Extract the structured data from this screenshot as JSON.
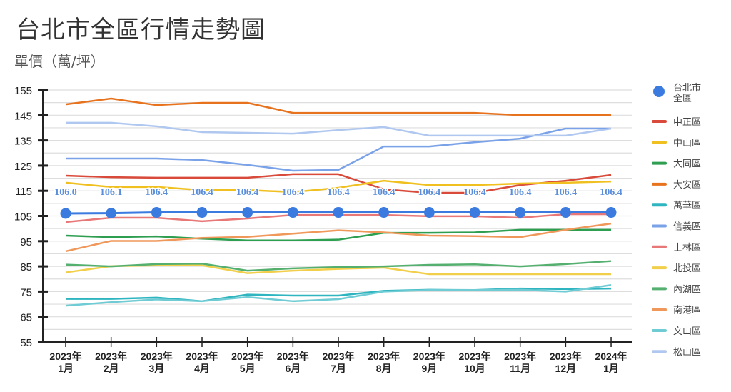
{
  "chart_data": {
    "type": "line",
    "title": "台北市全區行情走勢圖",
    "ylabel": "單價（萬/坪）",
    "xlabel": "",
    "ylim": [
      55,
      155
    ],
    "yticks": [
      "155",
      "145",
      "135",
      "125",
      "115",
      "105",
      "95",
      "85",
      "75",
      "65",
      "55"
    ],
    "grid": true,
    "legend_position": "right",
    "categories": [
      [
        "2023年",
        "1月"
      ],
      [
        "2023年",
        "2月"
      ],
      [
        "2023年",
        "3月"
      ],
      [
        "2023年",
        "4月"
      ],
      [
        "2023年",
        "5月"
      ],
      [
        "2023年",
        "6月"
      ],
      [
        "2023年",
        "7月"
      ],
      [
        "2023年",
        "8月"
      ],
      [
        "2023年",
        "9月"
      ],
      [
        "2023年",
        "10月"
      ],
      [
        "2023年",
        "11月"
      ],
      [
        "2023年",
        "12月"
      ],
      [
        "2024年",
        "1月"
      ]
    ],
    "series": [
      {
        "name": "台北市全區",
        "color": "#3b7be0",
        "marker": "circle",
        "labels": [
          "106.0",
          "106.1",
          "106.4",
          "106.4",
          "106.4",
          "106.4",
          "106.4",
          "106.4",
          "106.4",
          "106.4",
          "106.4",
          "106.4",
          "106.4"
        ],
        "values": [
          106.0,
          106.1,
          106.4,
          106.4,
          106.4,
          106.4,
          106.4,
          106.4,
          106.4,
          106.4,
          106.4,
          106.4,
          106.4
        ]
      },
      {
        "name": "中正區",
        "color": "#d94a3a",
        "values": [
          121.0,
          120.4,
          120.2,
          120.2,
          120.2,
          121.6,
          121.6,
          115.6,
          114.2,
          114.2,
          117.3,
          119.0,
          121.3
        ]
      },
      {
        "name": "中山區",
        "color": "#f0c020",
        "values": [
          118.2,
          116.5,
          116.5,
          115.3,
          115.3,
          114.5,
          116.2,
          119.0,
          117.3,
          117.3,
          117.9,
          118.2,
          118.7
        ]
      },
      {
        "name": "大同區",
        "color": "#2e9e50",
        "values": [
          97.2,
          96.6,
          96.9,
          96.0,
          95.3,
          95.3,
          95.6,
          98.3,
          98.3,
          98.5,
          99.5,
          99.5,
          99.5
        ]
      },
      {
        "name": "大安區",
        "color": "#e8731f",
        "values": [
          149.3,
          151.6,
          149.0,
          149.9,
          149.9,
          145.9,
          145.9,
          145.9,
          145.9,
          145.9,
          145.0,
          145.0,
          145.0
        ]
      },
      {
        "name": "萬華區",
        "color": "#2fb5c0",
        "values": [
          72.1,
          72.1,
          72.6,
          71.2,
          73.8,
          73.4,
          73.4,
          75.3,
          75.7,
          75.6,
          76.2,
          76.0,
          76.2
        ]
      },
      {
        "name": "信義區",
        "color": "#7aa2e8",
        "values": [
          127.8,
          127.8,
          127.8,
          127.2,
          125.3,
          123.0,
          123.3,
          132.6,
          132.6,
          134.3,
          135.7,
          139.7,
          139.7
        ]
      },
      {
        "name": "士林區",
        "color": "#e87878",
        "values": [
          102.6,
          104.3,
          104.3,
          102.9,
          104.0,
          105.4,
          105.4,
          105.4,
          104.9,
          104.9,
          104.3,
          105.7,
          105.7
        ]
      },
      {
        "name": "北投區",
        "color": "#f2cf4a",
        "values": [
          82.6,
          85.1,
          85.4,
          85.4,
          82.3,
          83.3,
          84.0,
          84.5,
          81.9,
          81.9,
          81.9,
          81.9,
          81.9
        ]
      },
      {
        "name": "內湖區",
        "color": "#55b070",
        "values": [
          85.7,
          85.0,
          85.9,
          86.1,
          83.3,
          84.2,
          84.7,
          85.0,
          85.6,
          85.8,
          85.0,
          85.9,
          87.1
        ]
      },
      {
        "name": "南港區",
        "color": "#f0975a",
        "values": [
          91.0,
          95.1,
          95.1,
          96.3,
          96.7,
          98.0,
          99.3,
          98.5,
          97.2,
          97.0,
          96.6,
          99.5,
          102.0
        ]
      },
      {
        "name": "文山區",
        "color": "#70ccd4",
        "values": [
          69.4,
          70.8,
          71.9,
          71.2,
          72.8,
          71.2,
          72.0,
          75.0,
          75.6,
          75.6,
          75.7,
          75.0,
          77.6
        ]
      },
      {
        "name": "松山區",
        "color": "#b0c8f0",
        "values": [
          142.0,
          142.0,
          140.6,
          138.3,
          138.0,
          137.7,
          139.1,
          140.3,
          136.9,
          136.9,
          136.9,
          136.9,
          139.7
        ]
      }
    ]
  }
}
